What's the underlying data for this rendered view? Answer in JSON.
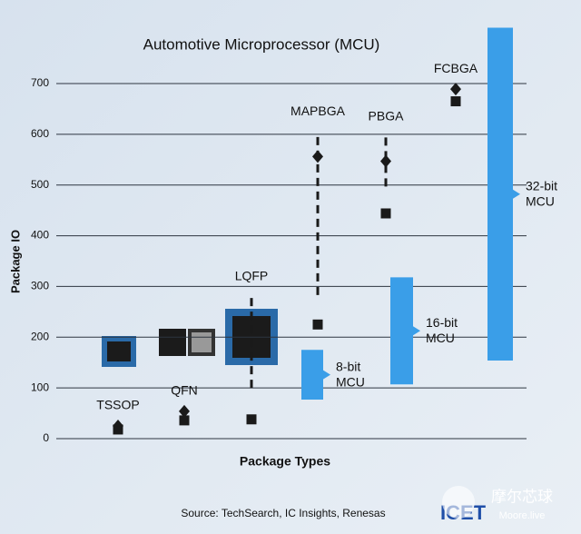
{
  "chart_data": {
    "type": "range-marker",
    "title": "Automotive Microprocessor (MCU)",
    "y_label": "Package IO",
    "x_label": "Package Types",
    "source": "Source: TechSearch, IC Insights, Renesas",
    "categories": [
      "TSSOP",
      "QFN",
      "LQFP",
      "MAPBGA",
      "PBGA",
      "FCBGA"
    ],
    "series": [
      {
        "marker": "diamond",
        "color": "#1a1a1a",
        "values": [
          25,
          54,
          null,
          556,
          547,
          689
        ]
      },
      {
        "marker": "square",
        "color": "#1a1a1a",
        "values": [
          18,
          36,
          38,
          225,
          444,
          665
        ]
      }
    ],
    "ranges": [
      null,
      null,
      [
        100,
        280
      ],
      [
        283,
        605
      ],
      [
        497,
        595
      ],
      null
    ],
    "brackets": [
      {
        "label": [
          "8-bit",
          "MCU"
        ],
        "range": [
          77,
          175
        ],
        "color": "#3a9ee8"
      },
      {
        "label": [
          "16-bit",
          "MCU"
        ],
        "range": [
          107,
          318
        ],
        "color": "#3a9ee8"
      },
      {
        "label": [
          "32-bit",
          "MCU"
        ],
        "range": [
          154,
          810
        ],
        "color": "#3a9ee8"
      }
    ],
    "ylim": [
      0,
      700
    ],
    "yticks": [
      0,
      100,
      200,
      300,
      400,
      500,
      600,
      700
    ],
    "grid": true
  },
  "logo": {
    "text": "ICET",
    "watermark": "摩尔芯球",
    "watermark_sub": "Moore.live"
  }
}
